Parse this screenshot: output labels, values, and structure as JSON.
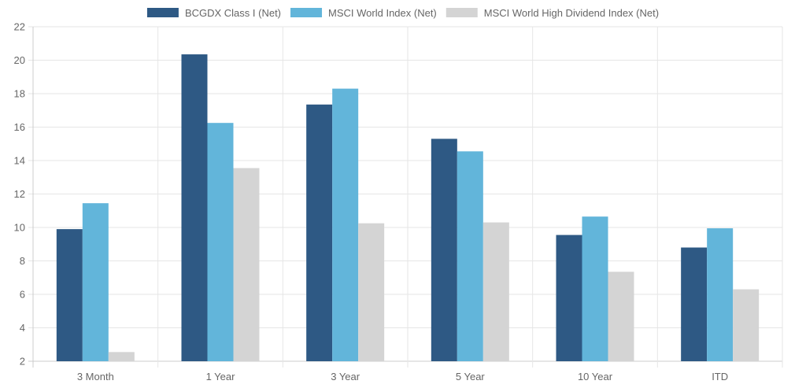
{
  "chart_data": {
    "type": "bar",
    "categories": [
      "3 Month",
      "1 Year",
      "3 Year",
      "5 Year",
      "10 Year",
      "ITD"
    ],
    "series": [
      {
        "name": "BCGDX Class I (Net)",
        "color": "#2e5984",
        "values": [
          9.9,
          20.35,
          17.35,
          15.3,
          9.55,
          8.8
        ]
      },
      {
        "name": "MSCI World Index (Net)",
        "color": "#62b5da",
        "values": [
          11.45,
          16.25,
          18.3,
          14.55,
          10.65,
          9.95
        ]
      },
      {
        "name": "MSCI World High Dividend Index (Net)",
        "color": "#d4d4d4",
        "values": [
          2.55,
          13.55,
          10.25,
          10.3,
          7.35,
          6.3
        ]
      }
    ],
    "yticks": [
      "2",
      "4",
      "6",
      "8",
      "10",
      "12",
      "14",
      "16",
      "18",
      "20",
      "22"
    ],
    "ylim": [
      2,
      22
    ],
    "grid": true,
    "legend_position": "top-center"
  }
}
